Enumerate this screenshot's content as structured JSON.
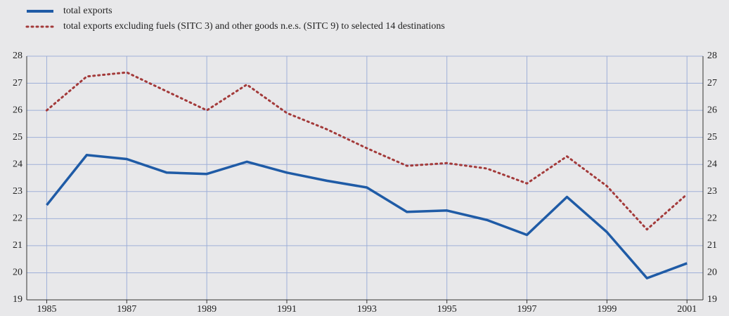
{
  "chart_data": {
    "type": "line",
    "x": [
      1985,
      1986,
      1987,
      1988,
      1989,
      1990,
      1991,
      1992,
      1993,
      1994,
      1995,
      1996,
      1997,
      1998,
      1999,
      2000,
      2001
    ],
    "series": [
      {
        "name": "total exports",
        "color": "#1f5ba6",
        "style": "solid",
        "values": [
          22.5,
          24.35,
          24.2,
          23.7,
          23.65,
          24.1,
          23.7,
          23.4,
          23.15,
          22.25,
          22.3,
          21.95,
          21.4,
          22.8,
          21.5,
          19.8,
          20.35
        ]
      },
      {
        "name": "total exports excluding fuels (SITC 3) and other goods n.e.s. (SITC 9) to selected 14 destinations",
        "color": "#a33a3a",
        "style": "dotted",
        "values": [
          26.0,
          27.25,
          27.4,
          26.7,
          26.0,
          26.95,
          25.9,
          25.3,
          24.6,
          23.95,
          24.05,
          23.85,
          23.3,
          24.3,
          23.2,
          21.6,
          22.9
        ]
      }
    ],
    "xlim": [
      1984.5,
      2001.4
    ],
    "xticks": [
      1985,
      1987,
      1989,
      1991,
      1993,
      1995,
      1997,
      1999,
      2001
    ],
    "ylim": [
      19,
      28
    ],
    "yticks": [
      19,
      20,
      21,
      22,
      23,
      24,
      25,
      26,
      27,
      28
    ],
    "grid": true,
    "legend": "top-left"
  }
}
